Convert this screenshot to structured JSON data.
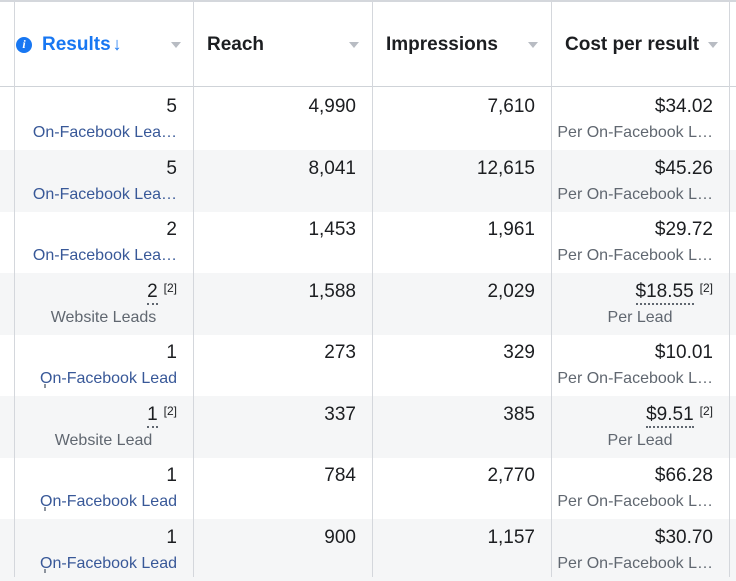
{
  "columns": {
    "results": {
      "label": "Results",
      "sort_arrow": "↓"
    },
    "reach": {
      "label": "Reach"
    },
    "impressions": {
      "label": "Impressions"
    },
    "cost": {
      "label": "Cost per result"
    }
  },
  "rows": [
    {
      "results": "5",
      "results_footnote": "",
      "results_sub": "On-Facebook Lea…",
      "reach": "4,990",
      "impressions": "7,610",
      "cost": "$34.02",
      "cost_footnote": "",
      "cost_sub": "Per On-Facebook L…"
    },
    {
      "results": "5",
      "results_footnote": "",
      "results_sub": "On-Facebook Lea…",
      "reach": "8,041",
      "impressions": "12,615",
      "cost": "$45.26",
      "cost_footnote": "",
      "cost_sub": "Per On-Facebook L…"
    },
    {
      "results": "2",
      "results_footnote": "",
      "results_sub": "On-Facebook Lea…",
      "reach": "1,453",
      "impressions": "1,961",
      "cost": "$29.72",
      "cost_footnote": "",
      "cost_sub": "Per On-Facebook L…"
    },
    {
      "results": "2",
      "results_footnote": "[2]",
      "results_sub": "Website Leads",
      "reach": "1,588",
      "impressions": "2,029",
      "cost": "$18.55",
      "cost_footnote": "[2]",
      "cost_sub": "Per Lead"
    },
    {
      "results": "1",
      "results_footnote": "",
      "results_sub": "On-Facebook Lead",
      "reach": "273",
      "impressions": "329",
      "cost": "$10.01",
      "cost_footnote": "",
      "cost_sub": "Per On-Facebook L…"
    },
    {
      "results": "1",
      "results_footnote": "[2]",
      "results_sub": "Website Lead",
      "reach": "337",
      "impressions": "385",
      "cost": "$9.51",
      "cost_footnote": "[2]",
      "cost_sub": "Per Lead"
    },
    {
      "results": "1",
      "results_footnote": "",
      "results_sub": "On-Facebook Lead",
      "reach": "784",
      "impressions": "2,770",
      "cost": "$66.28",
      "cost_footnote": "",
      "cost_sub": "Per On-Facebook L…"
    },
    {
      "results": "1",
      "results_footnote": "",
      "results_sub": "On-Facebook Lead",
      "reach": "900",
      "impressions": "1,157",
      "cost": "$30.70",
      "cost_footnote": "",
      "cost_sub": "Per On-Facebook L…"
    }
  ],
  "colors": {
    "accent": "#1877f2",
    "link": "#385898",
    "muted": "#606770",
    "stripe": "#f5f6f7"
  },
  "icons": {
    "header_info": "info-icon",
    "header_caret": "caret-down-icon"
  }
}
